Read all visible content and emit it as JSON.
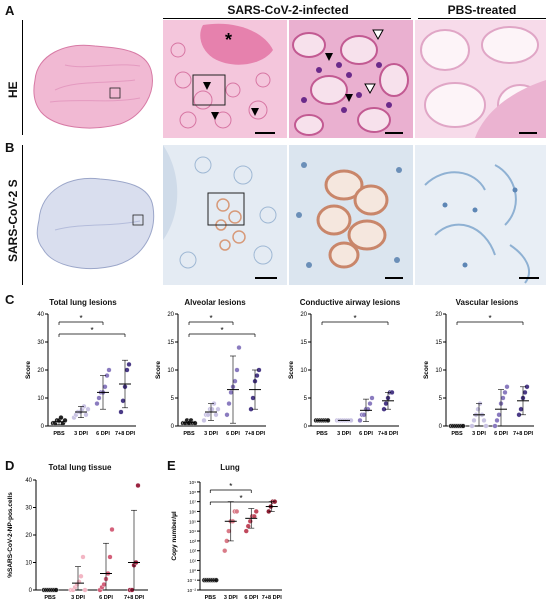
{
  "panels": {
    "A": "A",
    "B": "B",
    "C": "C",
    "D": "D",
    "E": "E"
  },
  "headers": {
    "infected": "SARS-CoV-2-infected",
    "pbs": "PBS-treated"
  },
  "row_labels": {
    "he": "HE",
    "spike": "SARS-CoV-2 S"
  },
  "panel_C": [
    {
      "title": "Total lung lesions",
      "ylabel": "Score",
      "ymax": 40,
      "yticks": [
        0,
        10,
        20,
        30,
        40
      ],
      "categories": [
        "PBS",
        "3 DPI",
        "6 DPI",
        "7+8 DPI"
      ],
      "groups": [
        [
          1,
          1,
          2,
          2,
          3,
          1,
          2
        ],
        [
          3,
          4,
          5,
          5,
          6,
          7,
          4,
          6
        ],
        [
          8,
          10,
          12,
          12,
          14,
          18,
          20
        ],
        [
          5,
          9,
          14,
          20,
          22
        ]
      ],
      "means": [
        1.5,
        5,
        12,
        15
      ],
      "sig": [
        {
          "from": 0,
          "to": 2,
          "label": "*"
        },
        {
          "from": 0,
          "to": 3,
          "label": "*"
        }
      ]
    },
    {
      "title": "Alveolar lesions",
      "ylabel": "Score",
      "ymax": 20,
      "yticks": [
        0,
        5,
        10,
        15,
        20
      ],
      "categories": [
        "PBS",
        "3 DPI",
        "6 DPI",
        "7+8 DPI"
      ],
      "groups": [
        [
          0.5,
          0.5,
          1,
          0.5,
          1,
          0.5,
          0.5
        ],
        [
          1,
          2,
          2,
          3,
          3,
          4,
          2,
          3
        ],
        [
          2,
          4,
          6,
          7,
          8,
          10,
          14
        ],
        [
          3,
          5,
          8,
          9,
          10
        ]
      ],
      "means": [
        0.6,
        2.5,
        6.5,
        6.5
      ],
      "sig": [
        {
          "from": 0,
          "to": 2,
          "label": "*"
        },
        {
          "from": 0,
          "to": 3,
          "label": "*"
        }
      ]
    },
    {
      "title": "Conductive airway lesions",
      "ylabel": "Score",
      "ymax": 20,
      "yticks": [
        0,
        5,
        10,
        15,
        20
      ],
      "categories": [
        "PBS",
        "3 DPI",
        "6 DPI",
        "7+8 DPI"
      ],
      "groups": [
        [
          1,
          1,
          1,
          1,
          1,
          1,
          1
        ],
        [
          1,
          1,
          1,
          1,
          1,
          1,
          1,
          1
        ],
        [
          1,
          2,
          2,
          3,
          3,
          4,
          5
        ],
        [
          3,
          4,
          5,
          6,
          6
        ]
      ],
      "means": [
        1,
        1,
        2.8,
        4.5
      ],
      "sig": [
        {
          "from": 0,
          "to": 3,
          "label": "*"
        }
      ]
    },
    {
      "title": "Vascular lesions",
      "ylabel": "Score",
      "ymax": 20,
      "yticks": [
        0,
        5,
        10,
        15,
        20
      ],
      "categories": [
        "PBS",
        "3 DPI",
        "6 DPI",
        "7+8 DPI"
      ],
      "groups": [
        [
          0,
          0,
          0,
          0,
          0,
          0,
          0
        ],
        [
          0,
          1,
          2,
          3,
          4,
          2,
          1,
          0
        ],
        [
          0,
          1,
          2,
          4,
          5,
          6,
          7
        ],
        [
          2,
          3,
          5,
          6,
          7
        ]
      ],
      "means": [
        0,
        2,
        3,
        4.5
      ],
      "sig": [
        {
          "from": 0,
          "to": 3,
          "label": "*"
        }
      ]
    }
  ],
  "panel_D": {
    "title": "Total lung tissue",
    "ylabel": "%SARS-CoV-2-NP-pos.cells",
    "ymax": 40,
    "yticks": [
      0,
      10,
      20,
      30,
      40
    ],
    "categories": [
      "PBS",
      "3 DPI",
      "6 DPI",
      "7+8 DPI"
    ],
    "groups": [
      [
        0,
        0,
        0,
        0,
        0,
        0,
        0
      ],
      [
        0,
        0,
        1,
        2,
        3,
        5,
        12,
        0
      ],
      [
        0,
        1,
        2,
        4,
        6,
        12,
        22
      ],
      [
        0,
        0,
        9,
        10,
        38
      ]
    ],
    "means": [
      0,
      2.5,
      6,
      10
    ]
  },
  "panel_E": {
    "title": "Lung",
    "ylabel": "Copy number/µl",
    "ytick_labels": [
      "10⁻²",
      "10⁻¹",
      "10⁰",
      "10¹",
      "10²",
      "10³",
      "10⁴",
      "10⁵",
      "10⁶",
      "10⁷",
      "10⁸",
      "10⁹"
    ],
    "categories": [
      "PBS",
      "3 DPI",
      "6 DPI",
      "7+8 DPI"
    ],
    "groups": [
      [
        -1,
        -1,
        -1,
        -1,
        -1,
        -1,
        -1
      ],
      [
        2,
        3,
        4,
        5,
        5,
        6,
        6
      ],
      [
        4,
        4.5,
        5,
        5.5,
        5.5,
        6
      ],
      [
        6,
        6.5,
        7,
        7
      ]
    ],
    "means": [
      -1,
      5,
      5.3,
      6.5
    ],
    "sig": [
      {
        "from": 0,
        "to": 2,
        "label": "*"
      },
      {
        "from": 0,
        "to": 3,
        "label": "*"
      }
    ]
  },
  "colors": {
    "pbs": "#222222",
    "dpi3": "#c9c3e3",
    "dpi6": "#8a7bbf",
    "dpi7": "#4a3a86",
    "d_pbs": "#222222",
    "d_3": "#f3b6c4",
    "d_6": "#d4607a",
    "d_7": "#9a2340",
    "e_3": "#d97b88",
    "e_6": "#c0485c",
    "e_7": "#8c1f33"
  }
}
